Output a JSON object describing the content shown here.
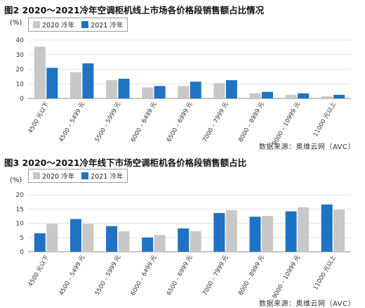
{
  "colors": {
    "series_2020": "#c8c8c8",
    "series_2021": "#1f73c2"
  },
  "chart_data": [
    {
      "type": "bar",
      "title": "图2  2020～2021冷年空调柜机线上市场各价格段销售额占比情况",
      "unit": "(%)",
      "categories": [
        "4500 元以下",
        "4500 – 5499 元",
        "5500 – 5999 元",
        "6000 – 6499 元",
        "6500 – 6999 元",
        "7000 – 7999 元",
        "8000 – 8999 元",
        "9000 – 10999 元",
        "11000 元以上"
      ],
      "series": [
        {
          "name": "2020 冷年",
          "values": [
            35.5,
            18,
            12.5,
            7.5,
            8.5,
            10.5,
            3.5,
            2.5,
            1.5
          ]
        },
        {
          "name": "2021 冷年",
          "values": [
            21,
            24,
            13.5,
            8.5,
            11.5,
            12.5,
            4.5,
            3.5,
            2.5
          ]
        }
      ],
      "yticks": [
        0,
        10,
        20,
        30,
        40
      ],
      "ylim": [
        0,
        40
      ],
      "legend": "top-left",
      "source": "数据来源：奥维云网（AVC）"
    },
    {
      "type": "bar",
      "title": "图3  2020～2021冷年线下市场空调柜机各价格段销售额占比",
      "unit": "(%)",
      "categories": [
        "4500 元以下",
        "4500 – 5499 元",
        "5500 – 5999 元",
        "6000 – 6499 元",
        "6500 – 6999 元",
        "7000 – 7999 元",
        "8000 – 8999 元",
        "9000 – 10999 元",
        "11000 元以上"
      ],
      "series": [
        {
          "name": "2021 冷年",
          "values": [
            6.5,
            11.5,
            9,
            5,
            8.2,
            13.6,
            12.3,
            14.2,
            16.6
          ]
        },
        {
          "name": "2020 冷年",
          "values": [
            9.8,
            9.8,
            7.2,
            5.9,
            7.2,
            14.6,
            12.6,
            15.6,
            14.8
          ]
        }
      ],
      "yticks": [
        0,
        5,
        10,
        15,
        20
      ],
      "ylim": [
        0,
        20
      ],
      "legend": "top-left",
      "source": "数据来源：奥维云网（AVC）"
    }
  ]
}
